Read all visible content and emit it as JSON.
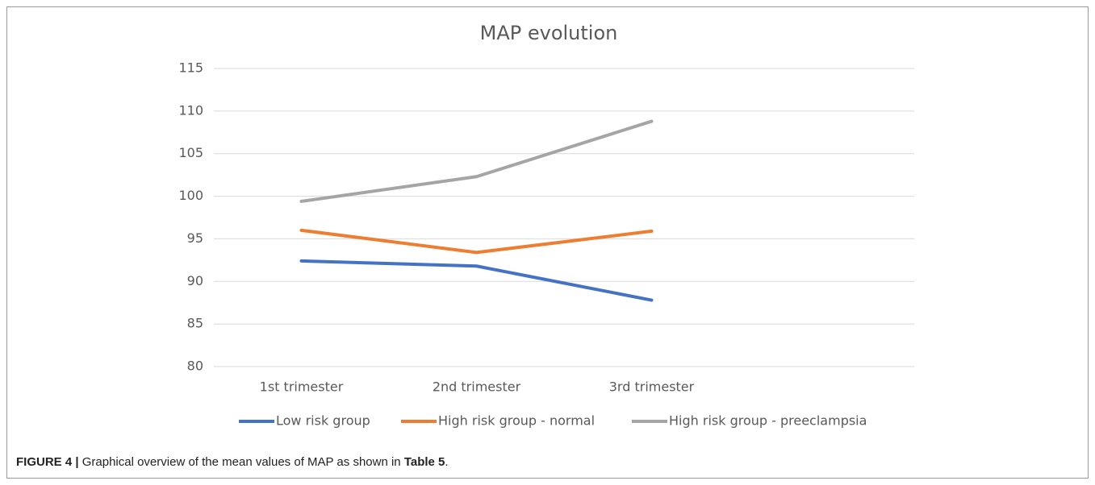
{
  "chart_data": {
    "type": "line",
    "title": "MAP evolution",
    "categories": [
      "1st trimester",
      "2nd trimester",
      "3rd trimester",
      null
    ],
    "series": [
      {
        "name": "Low risk group",
        "color": "#4472c4",
        "values": [
          92.4,
          91.8,
          87.8,
          null
        ]
      },
      {
        "name": "High risk group - normal",
        "color": "#ed7d31",
        "values": [
          96,
          93.4,
          95.9,
          null
        ]
      },
      {
        "name": "High risk group - preeclampsia",
        "color": "#a5a5a5",
        "values": [
          99.4,
          102.3,
          108.8,
          null
        ]
      }
    ],
    "ylim": [
      80,
      115
    ],
    "yticks": [
      80,
      85,
      90,
      95,
      100,
      105,
      110,
      115
    ],
    "grid": true,
    "legend": "bottom"
  },
  "caption": {
    "label": "FIGURE 4 |",
    "text": "Graphical overview of the mean values of MAP as shown in",
    "reference": "Table 5",
    "end": "."
  }
}
